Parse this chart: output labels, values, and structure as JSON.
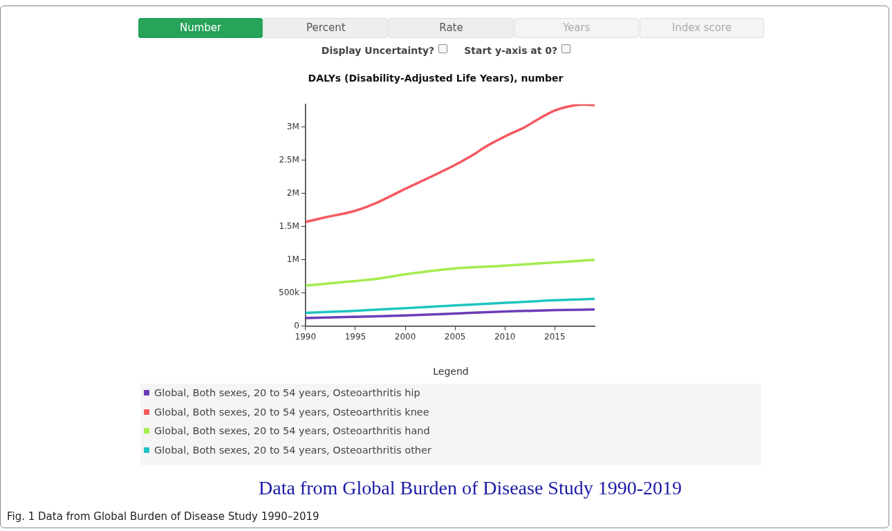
{
  "chart_data": {
    "type": "line",
    "title": "DALYs (Disability-Adjusted Life Years), number",
    "legend_title": "Legend",
    "legend": "bottom",
    "grid": false,
    "marker": "none",
    "line_style": "solid",
    "xlim": [
      1990,
      2019
    ],
    "xticks": [
      1990,
      1995,
      2000,
      2005,
      2010,
      2015
    ],
    "ylim": [
      0,
      3345000
    ],
    "yticks": [
      {
        "value": 0,
        "label": "0"
      },
      {
        "value": 500000,
        "label": "500k"
      },
      {
        "value": 1000000,
        "label": "1M"
      },
      {
        "value": 1500000,
        "label": "1.5M"
      },
      {
        "value": 2000000,
        "label": "2M"
      },
      {
        "value": 2500000,
        "label": "2.5M"
      },
      {
        "value": 3000000,
        "label": "3M"
      }
    ],
    "series": [
      {
        "name": "Global, Both sexes, 20 to 54 years, Osteoarthritis hip",
        "color": "#6a3db8",
        "x": [
          1990,
          1995,
          2000,
          2005,
          2010,
          2015,
          2019
        ],
        "values": [
          120000,
          140000,
          160000,
          190000,
          220000,
          240000,
          250000
        ]
      },
      {
        "name": "Global, Both sexes, 20 to 54 years, Osteoarthritis knee",
        "color": "#f5595f",
        "x": [
          1990,
          1992,
          1995,
          1997,
          2000,
          2002,
          2005,
          2007,
          2008,
          2010,
          2012,
          2013,
          2015,
          2017,
          2018,
          2019
        ],
        "values": [
          1570000,
          1640000,
          1740000,
          1850000,
          2070000,
          2210000,
          2430000,
          2600000,
          2700000,
          2860000,
          3000000,
          3090000,
          3250000,
          3330000,
          3340000,
          3330000
        ]
      },
      {
        "name": "Global, Both sexes, 20 to 54 years, Osteoarthritis hand",
        "color": "#a3ec4f",
        "x": [
          1990,
          1995,
          1997,
          2000,
          2002,
          2005,
          2010,
          2015,
          2019
        ],
        "values": [
          610000,
          680000,
          710000,
          780000,
          820000,
          870000,
          910000,
          960000,
          1000000
        ]
      },
      {
        "name": "Global, Both sexes, 20 to 54 years, Osteoarthritis other",
        "color": "#1fc4c0",
        "x": [
          1990,
          1995,
          2000,
          2005,
          2010,
          2015,
          2019
        ],
        "values": [
          200000,
          230000,
          270000,
          310000,
          350000,
          390000,
          410000
        ]
      }
    ],
    "annotations": [
      "Number",
      "Percent",
      "Rate",
      "Years",
      "Index score",
      "Display Uncertainty?",
      "Start y-axis at 0?",
      "Data from Global Burden of Disease Study 1990-2019",
      "Fig. 1 Data from Global Burden of Disease Study 1990–2019"
    ]
  }
}
